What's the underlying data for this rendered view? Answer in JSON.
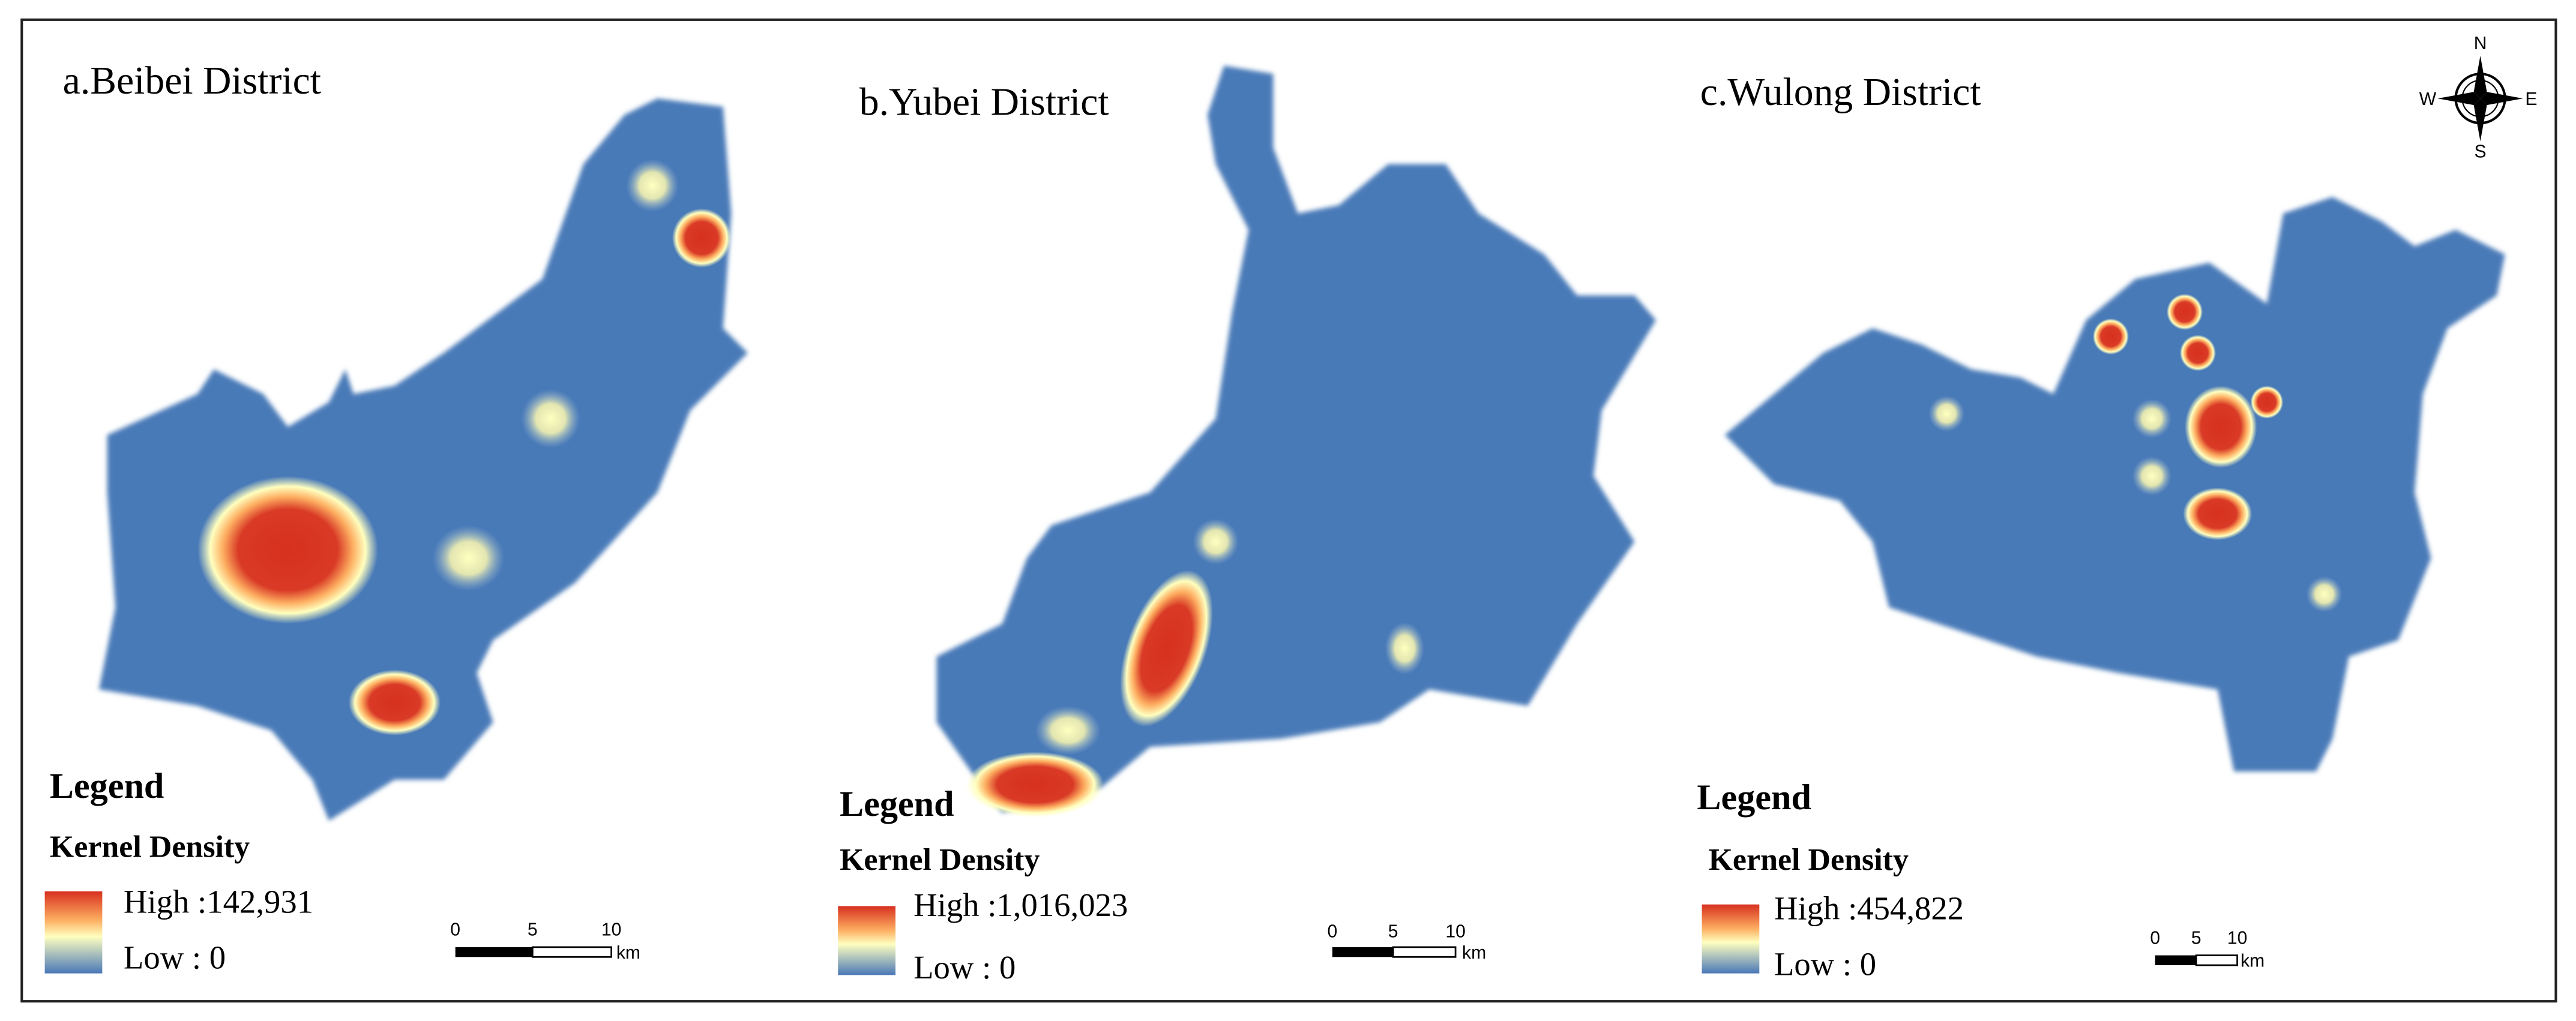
{
  "panels": [
    {
      "title": "a.Beibei District",
      "legend_title": "Legend",
      "legend_subtitle": "Kernel Density",
      "high": "High :142,931",
      "low": "Low : 0",
      "scale": [
        "0",
        "5",
        "10",
        "km"
      ]
    },
    {
      "title": "b.Yubei District",
      "legend_title": "Legend",
      "legend_subtitle": "Kernel Density",
      "high": "High :1,016,023",
      "low": "Low : 0",
      "scale": [
        "0",
        "5",
        "10",
        "km"
      ]
    },
    {
      "title": "c.Wulong District",
      "legend_title": "Legend",
      "legend_subtitle": "Kernel Density",
      "high": "High :454,822",
      "low": "Low : 0",
      "scale": [
        "0",
        "5",
        "10",
        "km"
      ]
    }
  ],
  "compass": {
    "n": "N",
    "e": "E",
    "s": "S",
    "w": "W"
  }
}
